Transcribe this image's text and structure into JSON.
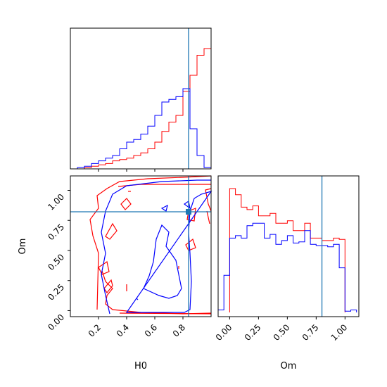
{
  "chart_data": [
    {
      "type": "histogram",
      "panel": "H0 marginal",
      "xlim": [
        0.0,
        1.0
      ],
      "truth": 0.84,
      "series": [
        {
          "color": "#ff0000",
          "bins": [
            0.0,
            0.05,
            0.1,
            0.15,
            0.2,
            0.25,
            0.3,
            0.35,
            0.4,
            0.45,
            0.5,
            0.55,
            0.6,
            0.65,
            0.7,
            0.75,
            0.8,
            0.85,
            0.9,
            0.95,
            1.0
          ],
          "counts": [
            0,
            0,
            0.01,
            0.02,
            0.03,
            0.04,
            0.06,
            0.07,
            0.08,
            0.1,
            0.12,
            0.15,
            0.2,
            0.28,
            0.35,
            0.4,
            0.58,
            0.7,
            0.85,
            0.9
          ]
        },
        {
          "color": "#0000ff",
          "bins": [
            0.0,
            0.05,
            0.1,
            0.15,
            0.2,
            0.25,
            0.3,
            0.35,
            0.4,
            0.45,
            0.5,
            0.55,
            0.6,
            0.65,
            0.7,
            0.75,
            0.8,
            0.85,
            0.9,
            0.95,
            1.0
          ],
          "counts": [
            0,
            0.01,
            0.02,
            0.04,
            0.06,
            0.08,
            0.1,
            0.15,
            0.2,
            0.22,
            0.26,
            0.32,
            0.4,
            0.5,
            0.52,
            0.54,
            0.6,
            0.3,
            0.1,
            0.01
          ]
        }
      ]
    },
    {
      "type": "contour",
      "panel": "H0 vs Om",
      "xlabel": "H0",
      "ylabel": "Om",
      "xlim": [
        0.0,
        1.0
      ],
      "ylim": [
        -0.05,
        1.12
      ],
      "xticks": [
        "0.2",
        "0.4",
        "0.6",
        "0.8"
      ],
      "yticks": [
        "0.00",
        "0.25",
        "0.50",
        "0.75",
        "1.00"
      ],
      "truth": {
        "x": 0.84,
        "y": 0.8
      }
    },
    {
      "type": "histogram",
      "panel": "Om marginal",
      "xlabel": "Om",
      "xlim": [
        -0.1,
        1.12
      ],
      "xticks": [
        "0.00",
        "0.25",
        "0.50",
        "0.75",
        "1.00"
      ],
      "truth": 0.8,
      "series": [
        {
          "color": "#ff0000",
          "bins": [
            0.0,
            0.05,
            0.1,
            0.15,
            0.2,
            0.25,
            0.3,
            0.35,
            0.4,
            0.45,
            0.5,
            0.55,
            0.6,
            0.65,
            0.7,
            0.75,
            0.8,
            0.85,
            0.9,
            0.95,
            1.0
          ],
          "counts": [
            1.0,
            0.95,
            0.85,
            0.83,
            0.86,
            0.78,
            0.78,
            0.8,
            0.72,
            0.72,
            0.74,
            0.66,
            0.66,
            0.72,
            0.6,
            0.6,
            0.58,
            0.58,
            0.6,
            0.59
          ]
        },
        {
          "color": "#0000ff",
          "bins": [
            -0.1,
            -0.05,
            0.0,
            0.05,
            0.1,
            0.15,
            0.2,
            0.25,
            0.3,
            0.35,
            0.4,
            0.45,
            0.5,
            0.55,
            0.6,
            0.65,
            0.7,
            0.75,
            0.8,
            0.85,
            0.9,
            0.95,
            1.0,
            1.05,
            1.1
          ],
          "counts": [
            0.02,
            0.3,
            0.6,
            0.62,
            0.6,
            0.7,
            0.72,
            0.72,
            0.6,
            0.63,
            0.55,
            0.58,
            0.62,
            0.56,
            0.57,
            0.66,
            0.55,
            0.54,
            0.54,
            0.53,
            0.55,
            0.36,
            0.01,
            0.02
          ]
        }
      ]
    }
  ]
}
